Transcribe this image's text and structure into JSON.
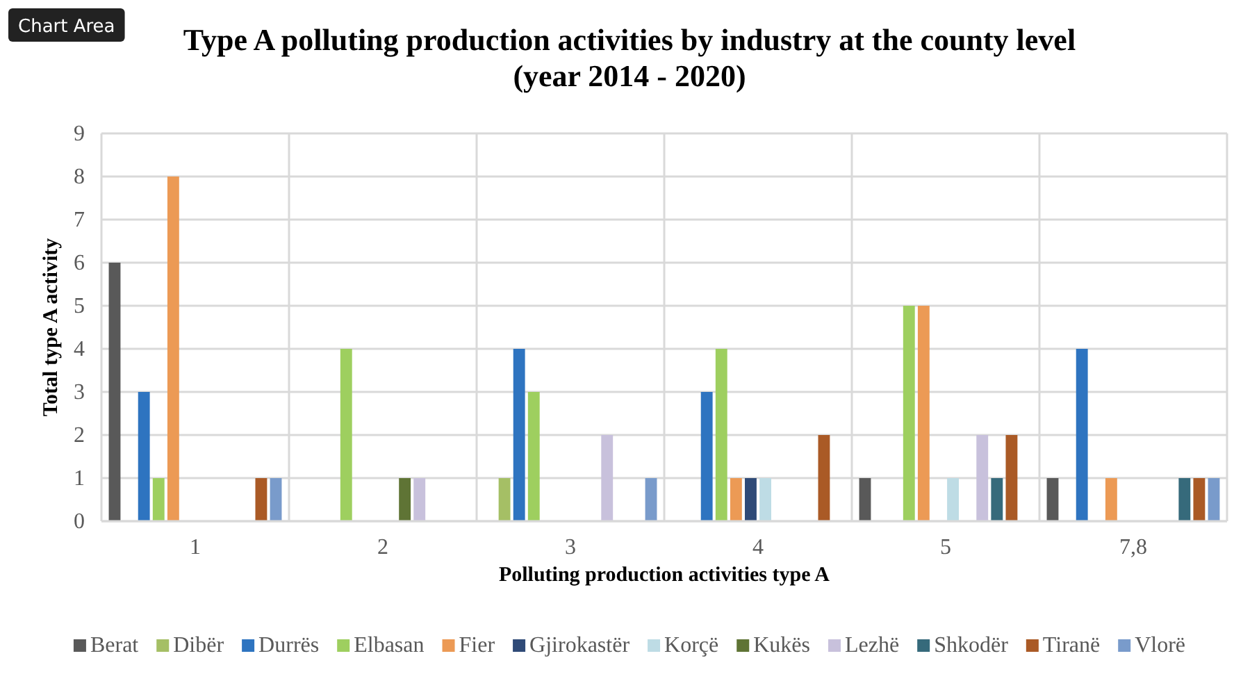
{
  "chart_data": {
    "type": "bar",
    "title": "Type A polluting production activities by industry at the county level\n(year 2014 - 2020)",
    "xlabel": "Polluting production activities type A",
    "ylabel": "Total type A activity",
    "categories": [
      "1",
      "2",
      "3",
      "4",
      "5",
      "7,8"
    ],
    "series": [
      {
        "name": "Berat",
        "color": "#595959",
        "values": [
          6,
          0,
          0,
          0,
          1,
          1
        ]
      },
      {
        "name": "Dibër",
        "color": "#a5bf65",
        "values": [
          0,
          0,
          1,
          0,
          0,
          0
        ]
      },
      {
        "name": "Durrës",
        "color": "#2e74c0",
        "values": [
          3,
          0,
          4,
          3,
          0,
          4
        ]
      },
      {
        "name": "Elbasan",
        "color": "#9ecf5f",
        "values": [
          1,
          4,
          3,
          4,
          5,
          0
        ]
      },
      {
        "name": "Fier",
        "color": "#ec9a55",
        "values": [
          8,
          0,
          0,
          1,
          5,
          1
        ]
      },
      {
        "name": "Gjirokastër",
        "color": "#2f4a77",
        "values": [
          0,
          0,
          0,
          1,
          0,
          0
        ]
      },
      {
        "name": "Korçë",
        "color": "#bedce5",
        "values": [
          0,
          0,
          0,
          1,
          1,
          0
        ]
      },
      {
        "name": "Kukës",
        "color": "#5f7435",
        "values": [
          0,
          1,
          0,
          0,
          0,
          0
        ]
      },
      {
        "name": "Lezhë",
        "color": "#c8c1dc",
        "values": [
          0,
          1,
          2,
          0,
          2,
          0
        ]
      },
      {
        "name": "Shkodër",
        "color": "#366a7b",
        "values": [
          0,
          0,
          0,
          0,
          1,
          1
        ]
      },
      {
        "name": "Tiranë",
        "color": "#aa5a26",
        "values": [
          1,
          0,
          0,
          2,
          2,
          1
        ]
      },
      {
        "name": "Vlorë",
        "color": "#799bcb",
        "values": [
          1,
          0,
          1,
          0,
          0,
          1
        ]
      }
    ],
    "ylim": [
      0,
      9
    ],
    "yticks": [
      0,
      1,
      2,
      3,
      4,
      5,
      6,
      7,
      8,
      9
    ],
    "grid": true,
    "legend": "bottom",
    "annotations": [
      "Chart Area"
    ]
  }
}
